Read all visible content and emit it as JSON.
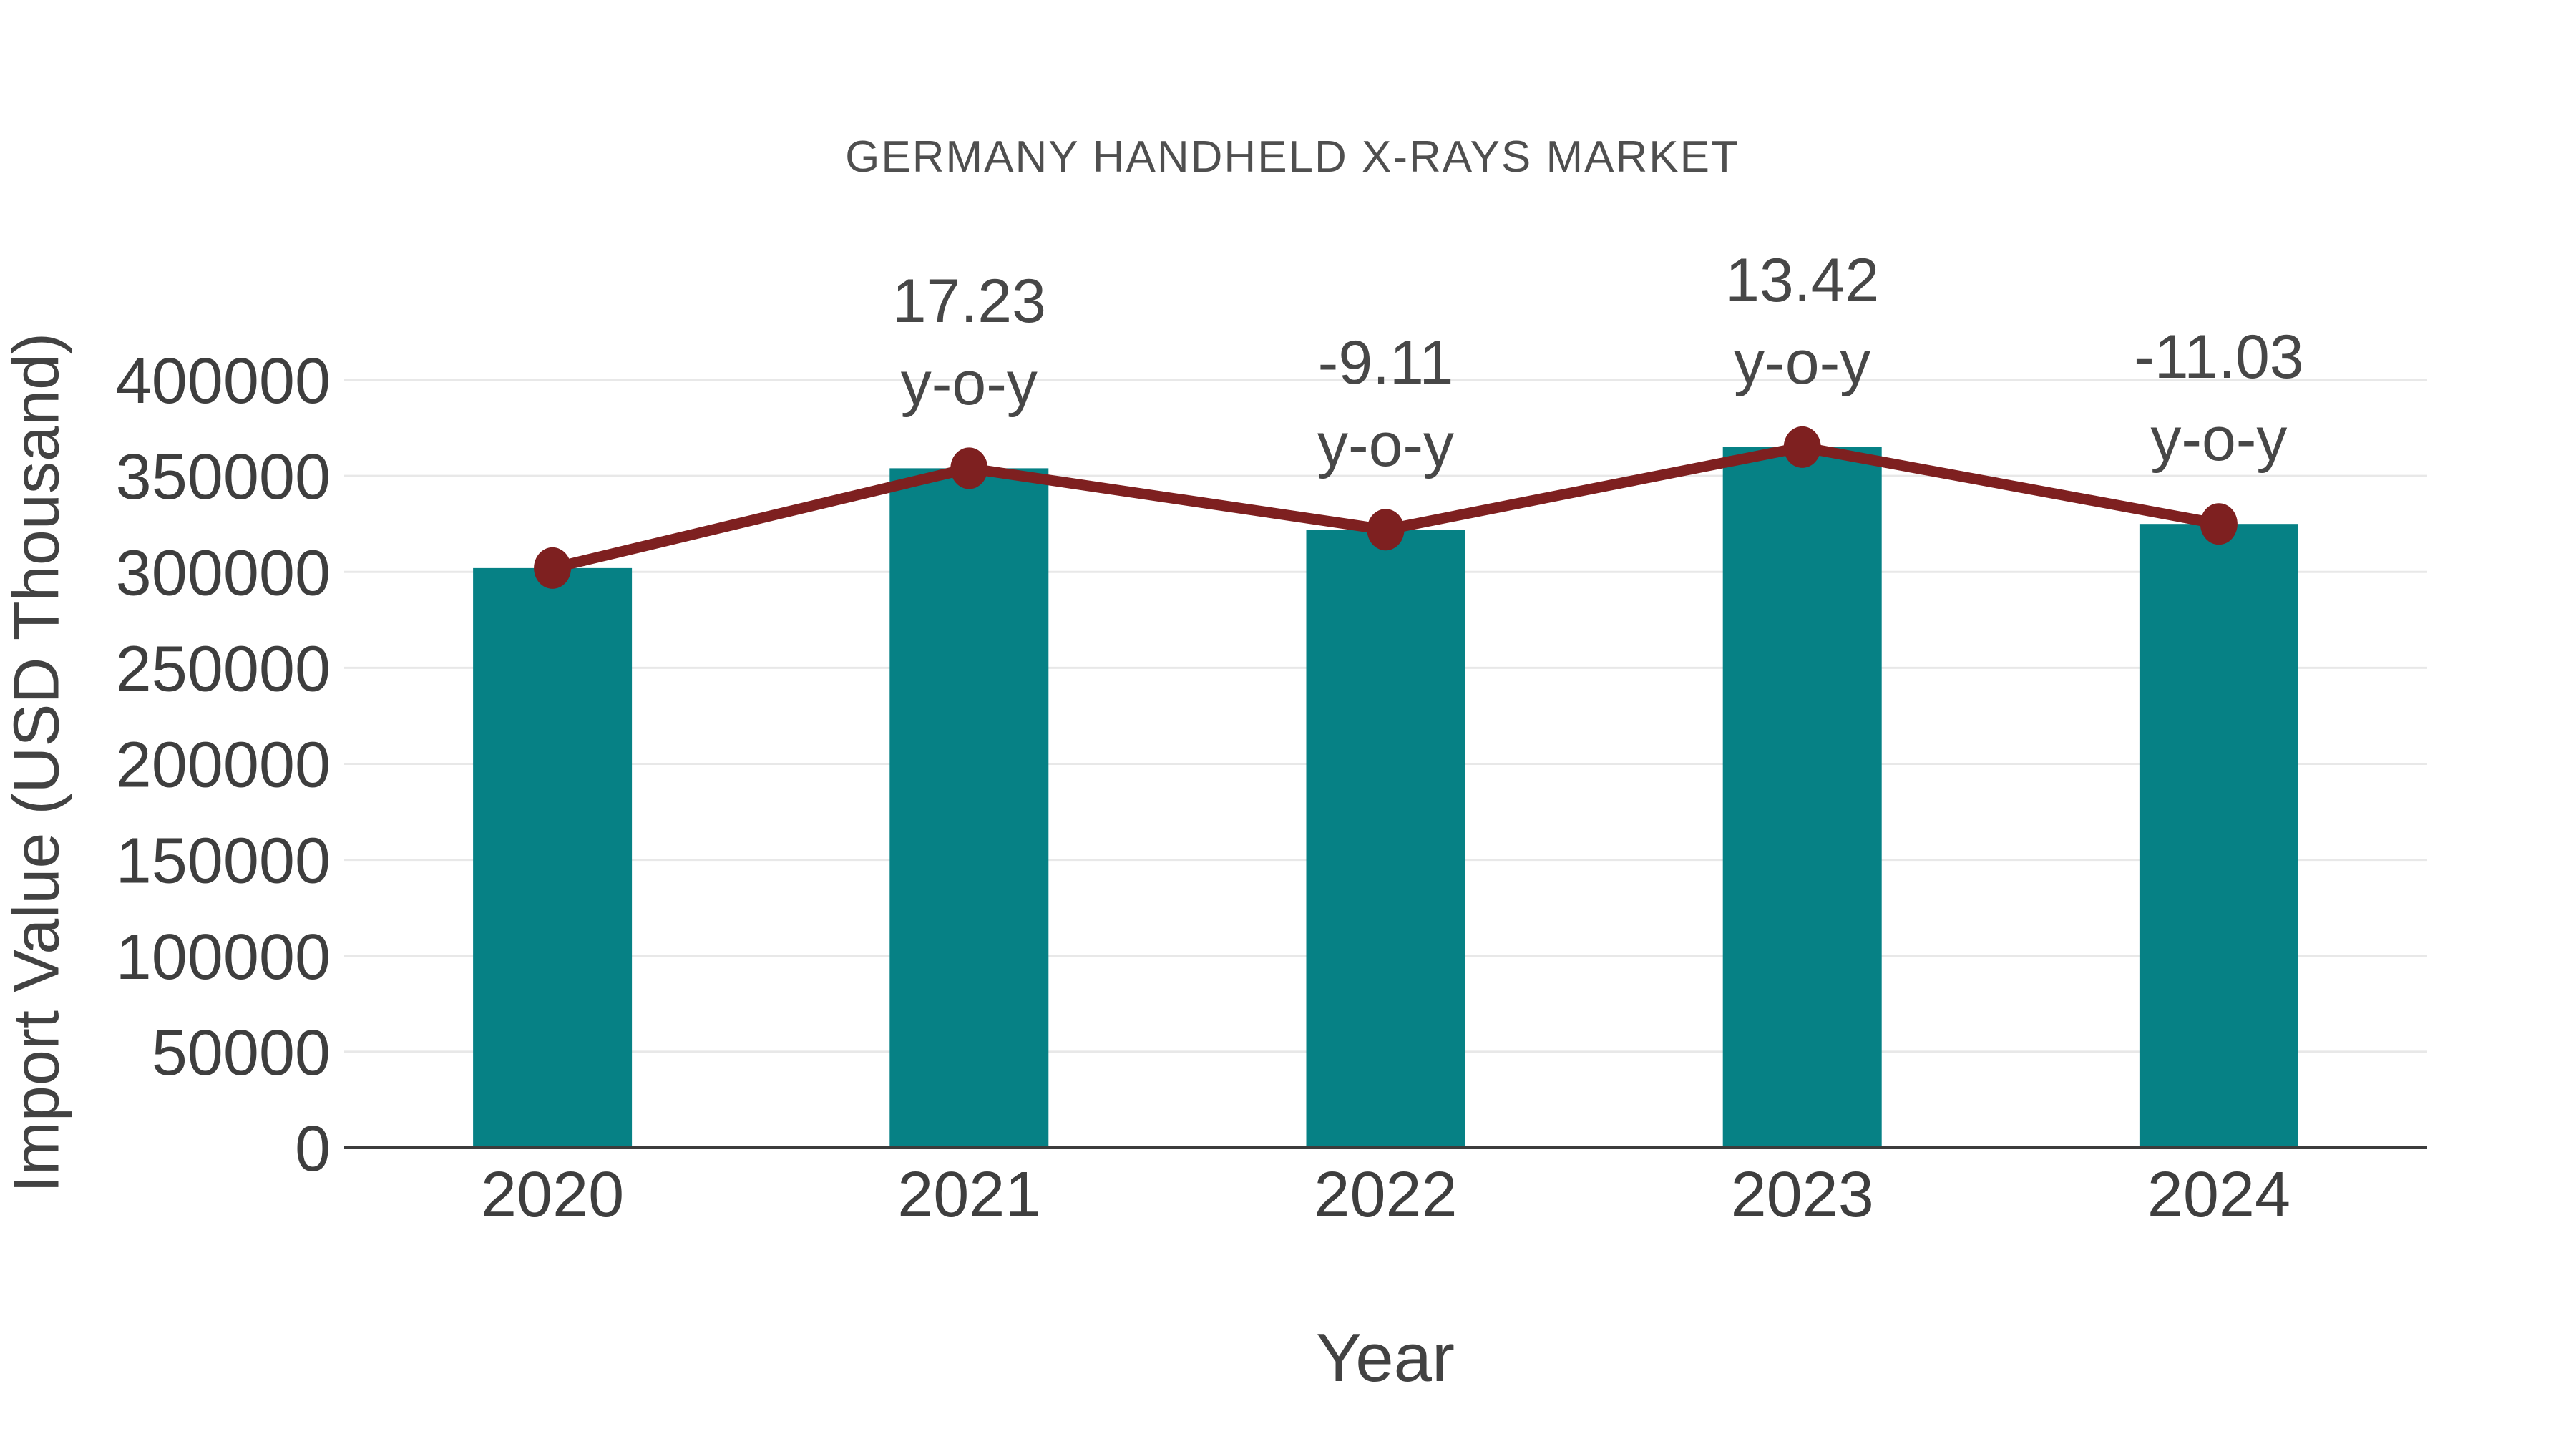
{
  "chart_data": {
    "type": "bar",
    "title": "GERMANY HANDHELD X-RAYS MARKET",
    "xlabel": "Year",
    "ylabel": "Import Value (USD Thousand)",
    "categories": [
      "2020",
      "2021",
      "2022",
      "2023",
      "2024"
    ],
    "series": [
      {
        "name": "import-value-bars",
        "type": "bar",
        "values": [
          302000,
          354000,
          322000,
          365000,
          325000
        ]
      },
      {
        "name": "import-value-trend-line",
        "type": "line",
        "values": [
          302000,
          354000,
          322000,
          365000,
          325000
        ]
      }
    ],
    "annotations": [
      {
        "category": "2021",
        "value_line": "17.23",
        "unit_line": "y-o-y"
      },
      {
        "category": "2022",
        "value_line": "-9.11",
        "unit_line": "y-o-y"
      },
      {
        "category": "2023",
        "value_line": "13.42",
        "unit_line": "y-o-y"
      },
      {
        "category": "2024",
        "value_line": "-11.03",
        "unit_line": "y-o-y"
      }
    ],
    "yticks": [
      0,
      50000,
      100000,
      150000,
      200000,
      250000,
      300000,
      350000,
      400000
    ],
    "ylim": [
      0,
      400000
    ],
    "grid": true,
    "legend_position": "none",
    "colors": {
      "bar": "#068185",
      "line": "#7e2020",
      "marker": "#7e2020",
      "gridline": "#e8e8e8",
      "axis_line": "#3c3c3c",
      "tick_text": "#3e3e3e",
      "title_text": "#4f4f4f",
      "axis_title_text": "#424242",
      "annotation_text": "#474747"
    }
  }
}
